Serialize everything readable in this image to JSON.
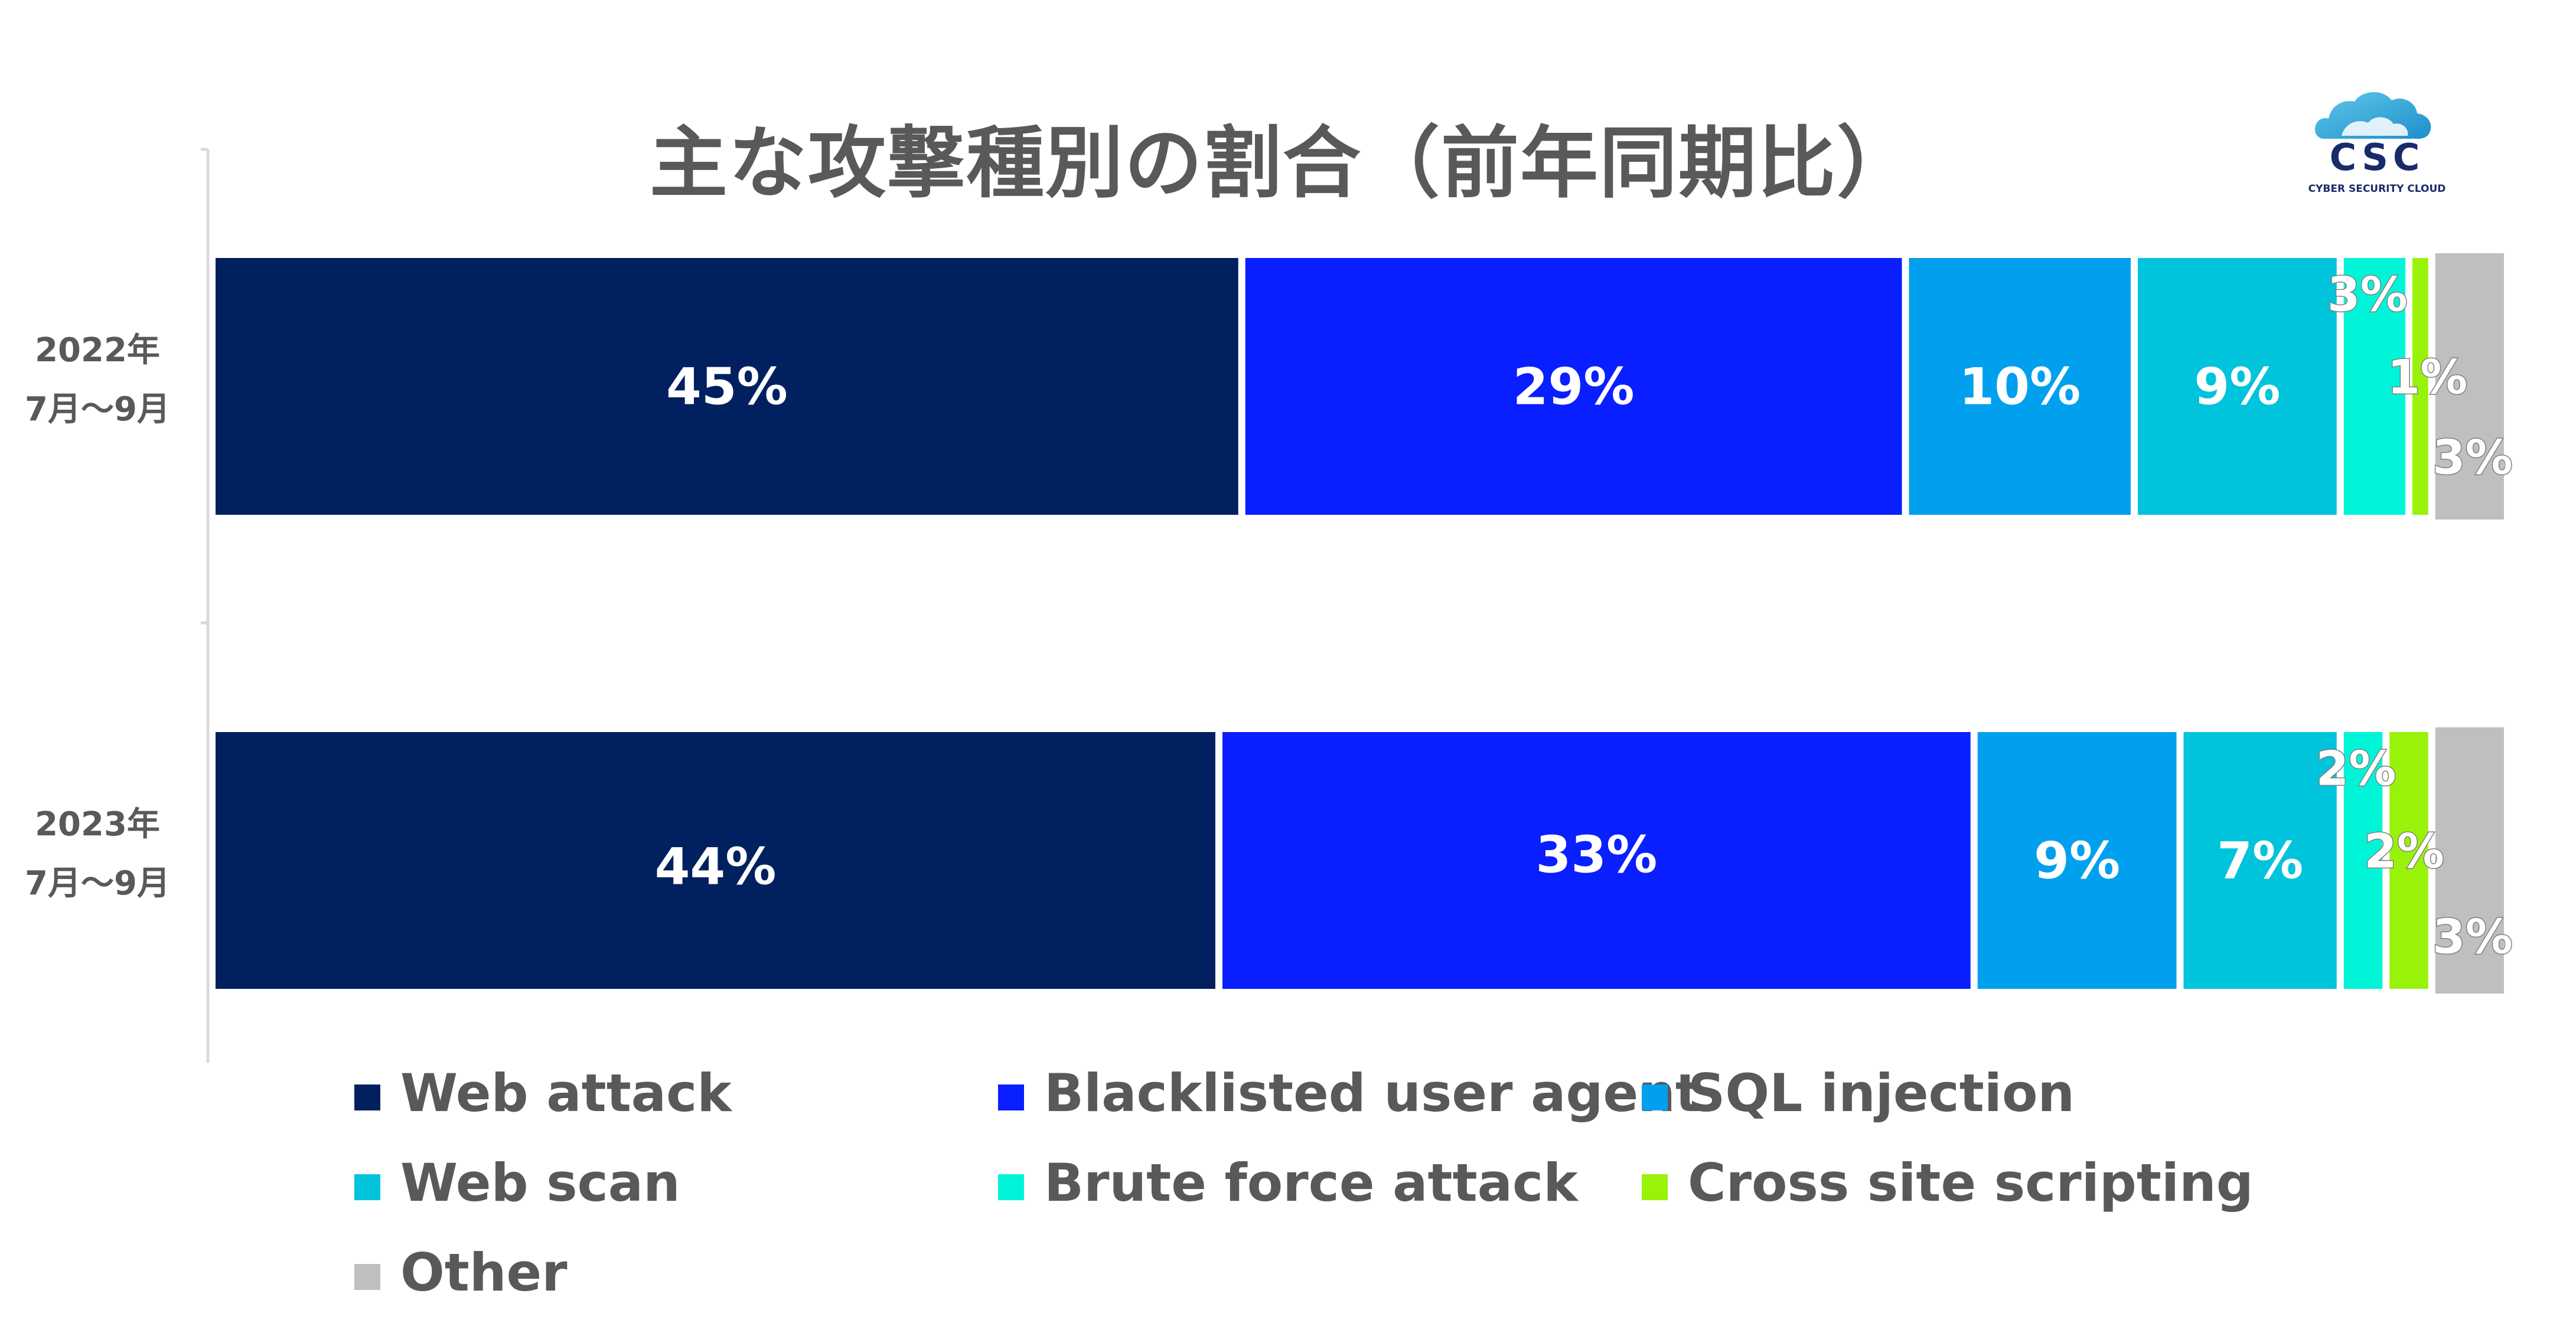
{
  "title": "主な攻撃種別の割合（前年同期比）",
  "logo": {
    "name": "CSC",
    "tagline": "CYBER SECURITY CLOUD"
  },
  "chart_data": {
    "type": "bar",
    "orientation": "horizontal",
    "stacked": true,
    "normalized_percent": true,
    "categories": [
      {
        "year": "2022年",
        "period": "7月～9月"
      },
      {
        "year": "2023年",
        "period": "7月～9月"
      }
    ],
    "series": [
      {
        "name": "Web attack",
        "color": "#002060",
        "values": [
          45,
          44
        ]
      },
      {
        "name": "Blacklisted user agent",
        "color": "#0A1FFF",
        "values": [
          29,
          33
        ]
      },
      {
        "name": "SQL injection",
        "color": "#00A0EE",
        "values": [
          10,
          9
        ]
      },
      {
        "name": "Web scan",
        "color": "#00C3DC",
        "values": [
          9,
          7
        ]
      },
      {
        "name": "Brute force attack",
        "color": "#00F5D8",
        "values": [
          3,
          2
        ]
      },
      {
        "name": "Cross site scripting",
        "color": "#99F20A",
        "values": [
          1,
          2
        ]
      },
      {
        "name": "Other",
        "color": "#BFBFBF",
        "values": [
          3,
          3
        ]
      }
    ],
    "data_labels": [
      [
        "45%",
        "29%",
        "10%",
        "9%",
        "3%",
        "1%",
        "3%"
      ],
      [
        "44%",
        "33%",
        "9%",
        "7%",
        "2%",
        "2%",
        "3%"
      ]
    ],
    "legend_position": "bottom",
    "xlabel": "",
    "ylabel": "",
    "grid": false
  }
}
